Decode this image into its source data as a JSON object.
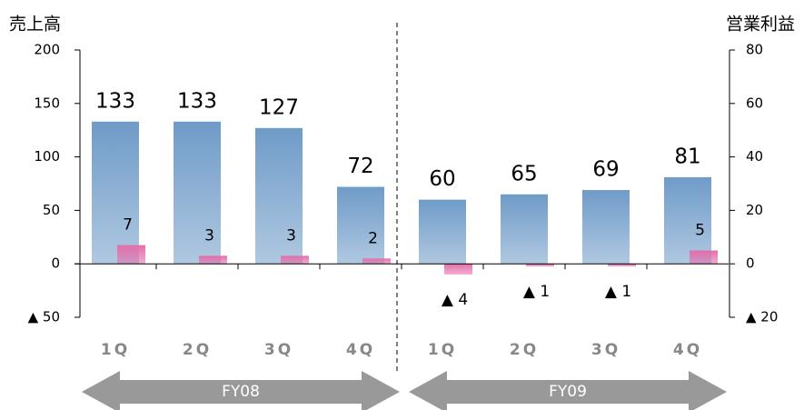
{
  "chart_data": {
    "type": "bar",
    "y_label": "売上高",
    "y2_label": "営業利益",
    "categories": [
      "1Q",
      "2Q",
      "3Q",
      "4Q",
      "1Q",
      "2Q",
      "3Q",
      "4Q"
    ],
    "groups": [
      "FY08",
      "FY09"
    ],
    "series": [
      {
        "color": "#6f9bc8",
        "values": [
          133,
          133,
          127,
          72,
          60,
          65,
          69,
          81
        ]
      },
      {
        "color": "#e46fab",
        "axis": "y2",
        "values": [
          7,
          3,
          3,
          2,
          -4,
          -1,
          -1,
          5
        ],
        "value_labels": [
          "7",
          "3",
          "3",
          "2",
          "▲ 4",
          "▲ 1",
          "▲ 1",
          "5"
        ]
      }
    ],
    "ylim": [
      -50,
      200
    ],
    "yticks": [
      {
        "value": -50,
        "label": "▲ 50"
      },
      0,
      50,
      100,
      150,
      200
    ],
    "y2lim": [
      -20,
      80
    ],
    "y2ticks": [
      {
        "value": -20,
        "label": "▲ 20"
      },
      0,
      20,
      40,
      60,
      80
    ]
  }
}
